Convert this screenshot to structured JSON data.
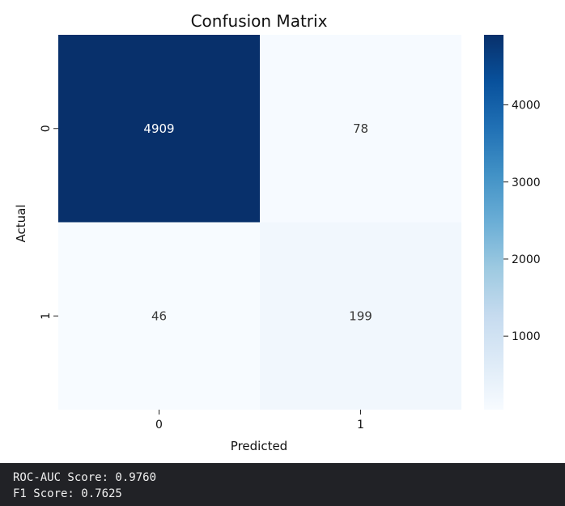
{
  "chart_data": {
    "type": "heatmap",
    "title": "Confusion Matrix",
    "xlabel": "Predicted",
    "ylabel": "Actual",
    "x_categories": [
      "0",
      "1"
    ],
    "y_categories": [
      "0",
      "1"
    ],
    "values": [
      [
        4909,
        78
      ],
      [
        46,
        199
      ]
    ],
    "annotation_labels": [
      [
        "4909",
        "78"
      ],
      [
        "46",
        "199"
      ]
    ],
    "colormap": "Blues",
    "colormap_low": "#f7fbff",
    "colormap_high": "#08306b",
    "annotation_dark_text": "#3a3a3a",
    "annotation_light_text": "#ffffff",
    "colorbar": {
      "range": [
        46,
        4909
      ],
      "ticks": [
        1000,
        2000,
        3000,
        4000
      ],
      "tick_labels": [
        "1000",
        "2000",
        "3000",
        "4000"
      ],
      "placement": "right"
    }
  },
  "output": {
    "roc_auc_line": "ROC-AUC Score: 0.9760",
    "f1_line": "F1 Score: 0.7625"
  }
}
